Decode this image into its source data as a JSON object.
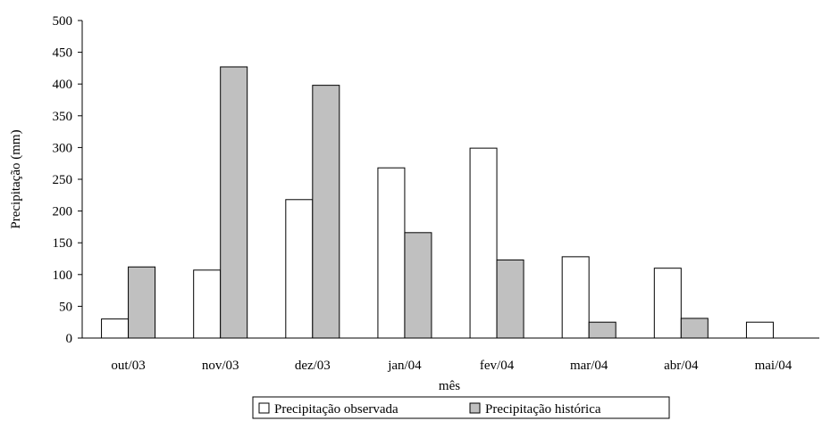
{
  "chart_data": {
    "type": "bar",
    "categories": [
      "out/03",
      "nov/03",
      "dez/03",
      "jan/04",
      "fev/04",
      "mar/04",
      "abr/04",
      "mai/04"
    ],
    "series": [
      {
        "name": "Precipitação observada",
        "values": [
          30,
          107,
          218,
          268,
          299,
          128,
          110,
          25
        ],
        "color": "#ffffff"
      },
      {
        "name": "Precipitação histórica",
        "values": [
          112,
          427,
          398,
          166,
          123,
          25,
          31,
          null
        ],
        "color": "#c0c0c0"
      }
    ],
    "title": "",
    "xlabel": "mês",
    "ylabel": "Precipitação (mm)",
    "ylim": [
      0,
      500
    ],
    "yticks": [
      0,
      50,
      100,
      150,
      200,
      250,
      300,
      350,
      400,
      450,
      500
    ],
    "grid": false,
    "legend": "bottom"
  }
}
